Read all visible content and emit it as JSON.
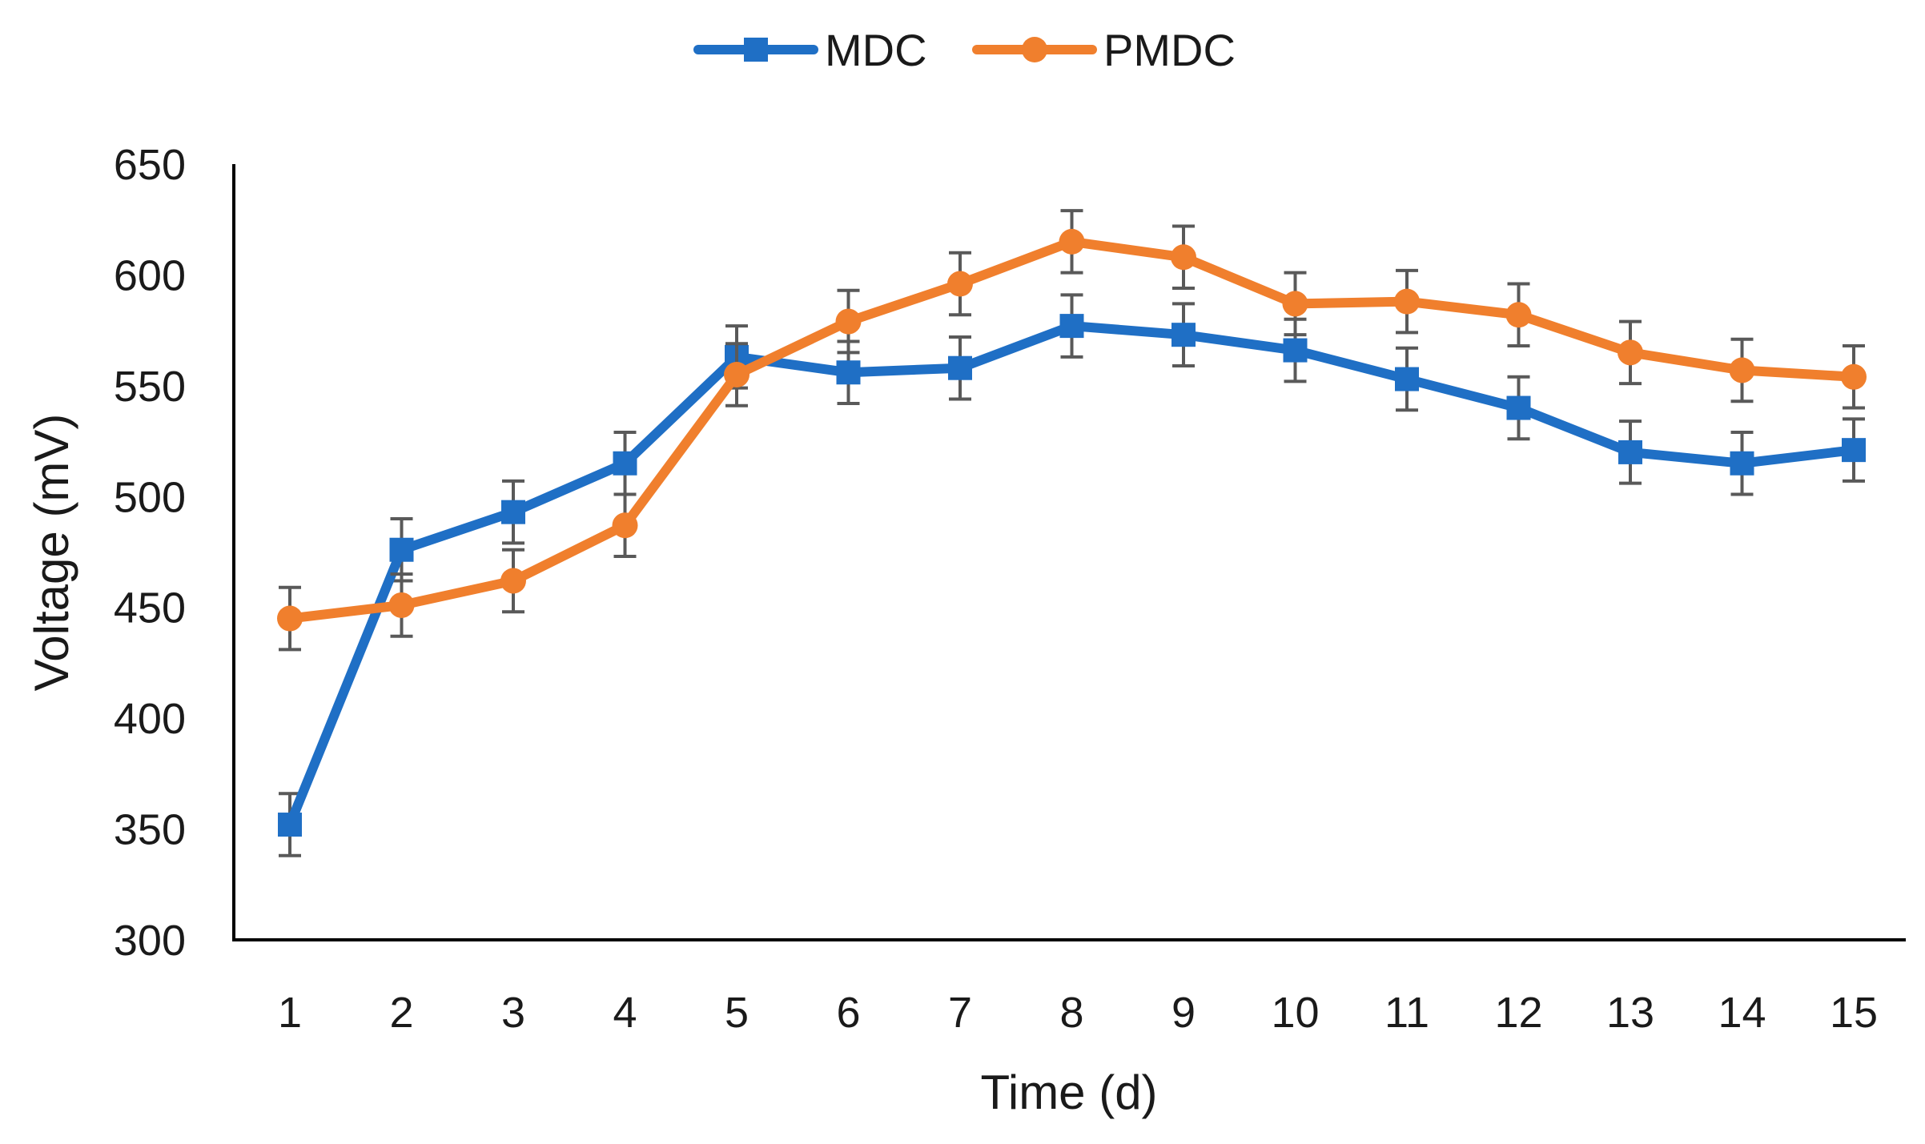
{
  "chart_data": {
    "type": "line",
    "title": "",
    "xlabel": "Time (d)",
    "ylabel": "Voltage (mV)",
    "ylim": [
      300,
      650
    ],
    "yticks": [
      300,
      350,
      400,
      450,
      500,
      550,
      600,
      650
    ],
    "x": [
      1,
      2,
      3,
      4,
      5,
      6,
      7,
      8,
      9,
      10,
      11,
      12,
      13,
      14,
      15
    ],
    "legend_position": "top-center",
    "error_bar": 14,
    "series": [
      {
        "name": "MDC",
        "color": "#1f6fc5",
        "marker": "square",
        "values": [
          352,
          476,
          493,
          515,
          563,
          556,
          558,
          577,
          573,
          566,
          553,
          540,
          520,
          515,
          521
        ]
      },
      {
        "name": "PMDC",
        "color": "#f07f2d",
        "marker": "circle",
        "values": [
          445,
          451,
          462,
          487,
          555,
          579,
          596,
          615,
          608,
          587,
          588,
          582,
          565,
          557,
          554
        ]
      }
    ]
  }
}
